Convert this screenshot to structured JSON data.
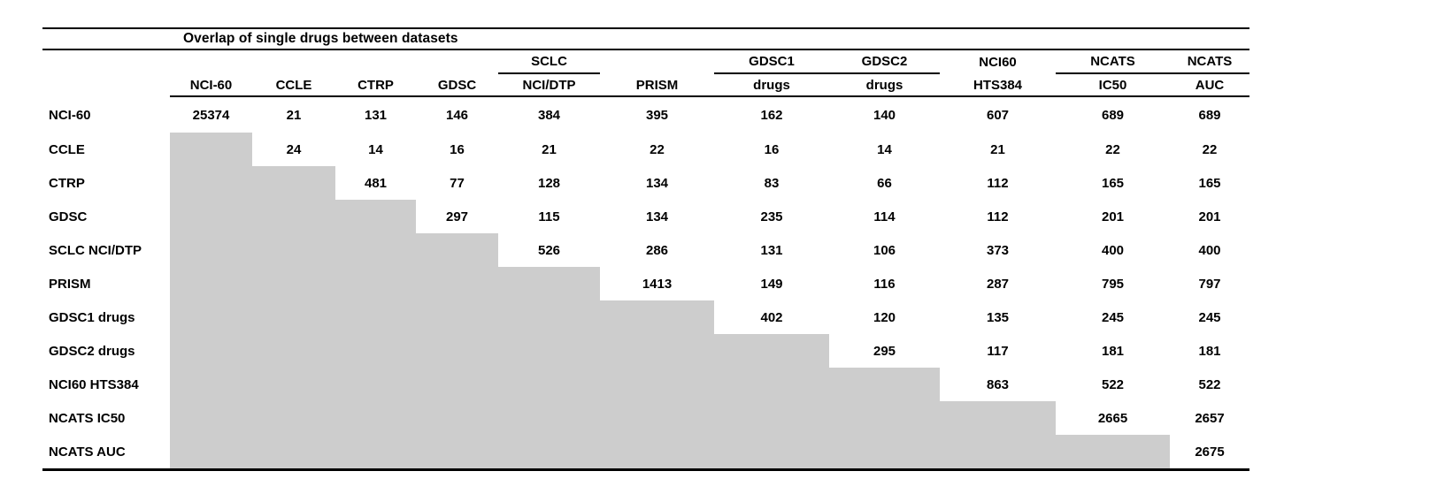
{
  "table": {
    "title": "Overlap of single drugs between datasets",
    "gray_color": "#cdcdcd",
    "columns": [
      {
        "group": "",
        "label": "NCI-60",
        "underline": false
      },
      {
        "group": "",
        "label": "CCLE",
        "underline": false
      },
      {
        "group": "",
        "label": "CTRP",
        "underline": false
      },
      {
        "group": "",
        "label": "GDSC",
        "underline": false
      },
      {
        "group": "SCLC",
        "label": "NCI/DTP",
        "underline": true
      },
      {
        "group": "",
        "label": "PRISM",
        "underline": false
      },
      {
        "group": "GDSC1",
        "label": "drugs",
        "underline": true
      },
      {
        "group": "GDSC2",
        "label": "drugs",
        "underline": true
      },
      {
        "group": "NCI60",
        "label": "HTS384",
        "underline": false
      },
      {
        "group": "NCATS",
        "label": "IC50",
        "underline": true
      },
      {
        "group": "NCATS",
        "label": "AUC",
        "underline": true
      }
    ],
    "rows": [
      {
        "label": "NCI-60",
        "values": [
          "25374",
          "21",
          "131",
          "146",
          "384",
          "395",
          "162",
          "140",
          "607",
          "689",
          "689"
        ]
      },
      {
        "label": "CCLE",
        "values": [
          "24",
          "14",
          "16",
          "21",
          "22",
          "16",
          "14",
          "21",
          "22",
          "22"
        ]
      },
      {
        "label": "CTRP",
        "values": [
          "481",
          "77",
          "128",
          "134",
          "83",
          "66",
          "112",
          "165",
          "165"
        ]
      },
      {
        "label": "GDSC",
        "values": [
          "297",
          "115",
          "134",
          "235",
          "114",
          "112",
          "201",
          "201"
        ]
      },
      {
        "label": "SCLC NCI/DTP",
        "values": [
          "526",
          "286",
          "131",
          "106",
          "373",
          "400",
          "400"
        ]
      },
      {
        "label": "PRISM",
        "values": [
          "1413",
          "149",
          "116",
          "287",
          "795",
          "797"
        ]
      },
      {
        "label": "GDSC1 drugs",
        "values": [
          "402",
          "120",
          "135",
          "245",
          "245"
        ]
      },
      {
        "label": "GDSC2 drugs",
        "values": [
          "295",
          "117",
          "181",
          "181"
        ]
      },
      {
        "label": "NCI60 HTS384",
        "values": [
          "863",
          "522",
          "522"
        ]
      },
      {
        "label": "NCATS IC50",
        "values": [
          "2665",
          "2657"
        ]
      },
      {
        "label": "NCATS AUC",
        "values": [
          "2675"
        ]
      }
    ]
  }
}
